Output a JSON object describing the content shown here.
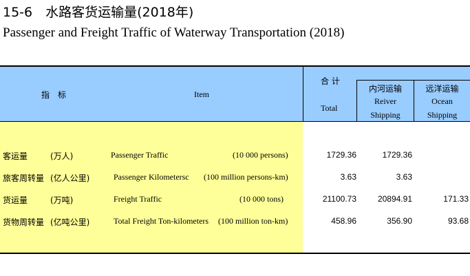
{
  "title": {
    "cn": "15-6　水路客货运输量(2018年)",
    "en": "Passenger and Freight Traffic of Waterway Transportation  (2018)"
  },
  "header": {
    "indicator_cn": "指　标",
    "item": "Item",
    "total_cn": "合  计",
    "total_en": "Total",
    "inland_cn": "内河运输",
    "inland_en_1": "Reiver",
    "inland_en_2": "Shipping",
    "ocean_cn": "远洋运输",
    "ocean_en_1": "Ocean",
    "ocean_en_2": "Shipping"
  },
  "rows": [
    {
      "cn": "客运量",
      "unit_cn": "(万人)",
      "item": "Passenger Traffic",
      "unit_en": "(10 000 persons)",
      "total": "1729.36",
      "inland": "1729.36",
      "ocean": ""
    },
    {
      "cn": "旅客周转量",
      "unit_cn": "(亿人公里)",
      "item": "Passenger Kilometersc",
      "unit_en": "(100 million persons-km)",
      "total": "3.63",
      "inland": "3.63",
      "ocean": ""
    },
    {
      "cn": "货运量",
      "unit_cn": "(万吨)",
      "item": "Freight Traffic",
      "unit_en": "(10 000 tons)",
      "total": "21100.73",
      "inland": "20894.91",
      "ocean": "171.33"
    },
    {
      "cn": "货物周转量",
      "unit_cn": "(亿吨公里)",
      "item": "Total Freight Ton-kilometers",
      "unit_en": "(100  million ton-km)",
      "total": "458.96",
      "inland": "356.90",
      "ocean": "93.68"
    }
  ]
}
